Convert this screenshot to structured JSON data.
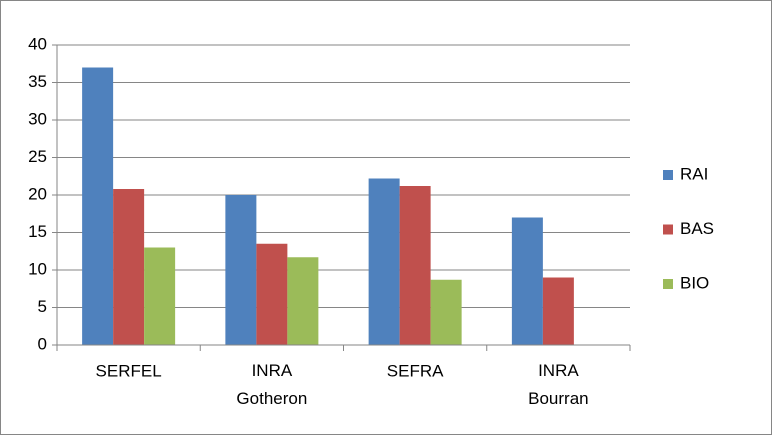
{
  "chart_data": {
    "type": "bar",
    "categories": [
      "SERFEL",
      "INRA Gotheron",
      "SEFRA",
      "INRA Bourran"
    ],
    "series": [
      {
        "name": "RAI",
        "color": "#4f81bd",
        "values": [
          37,
          20,
          22.2,
          17
        ]
      },
      {
        "name": "BAS",
        "color": "#c0504d",
        "values": [
          20.8,
          13.5,
          21.2,
          9
        ]
      },
      {
        "name": "BIO",
        "color": "#9bbb59",
        "values": [
          13,
          11.7,
          8.7,
          null
        ]
      }
    ],
    "ylim": [
      0,
      40
    ],
    "yticks": [
      0,
      5,
      10,
      15,
      20,
      25,
      30,
      35,
      40
    ],
    "grid": true,
    "legend": "right"
  }
}
